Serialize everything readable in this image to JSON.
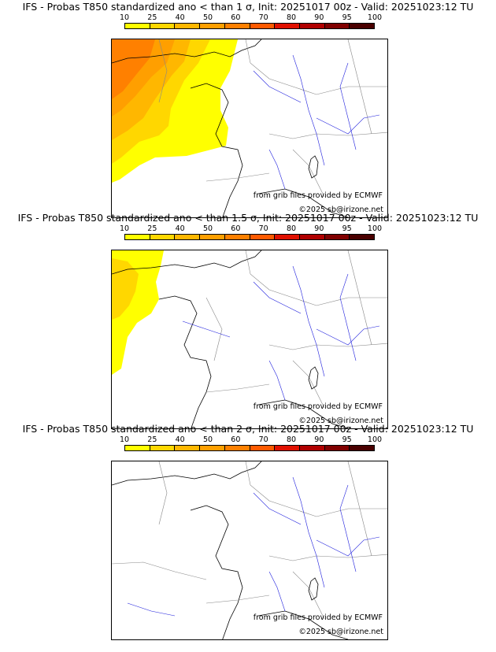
{
  "colorbar": {
    "ticks": [
      "10",
      "25",
      "40",
      "50",
      "60",
      "70",
      "80",
      "90",
      "95",
      "100"
    ],
    "colors": [
      "#ffff00",
      "#ffd700",
      "#ffb700",
      "#ff9f00",
      "#ff8000",
      "#ff5a00",
      "#e01000",
      "#b00000",
      "#800000",
      "#4a0000"
    ]
  },
  "panels": [
    {
      "title": "IFS - Probas T850  standardized ano < than 1 σ, Init: 20251017 00z - Valid: 20251023:12 TU",
      "source_credit": "from grib files provided by ECMWF",
      "copyright": "©2025 sb@irizone.net",
      "threshold_sigma": 1
    },
    {
      "title": "IFS - Probas T850  standardized ano < than 1.5 σ, Init: 20251017 00z - Valid: 20251023:12 TU",
      "source_credit": "from grib files provided by ECMWF",
      "copyright": "©2025 sb@irizone.net",
      "threshold_sigma": 1.5
    },
    {
      "title": "IFS - Probas T850  standardized ano < than 2 σ, Init: 20251017 00z - Valid: 20251023:12 TU",
      "source_credit": "from grib files provided by ECMWF",
      "copyright": "©2025 sb@irizone.net",
      "threshold_sigma": 2
    }
  ]
}
